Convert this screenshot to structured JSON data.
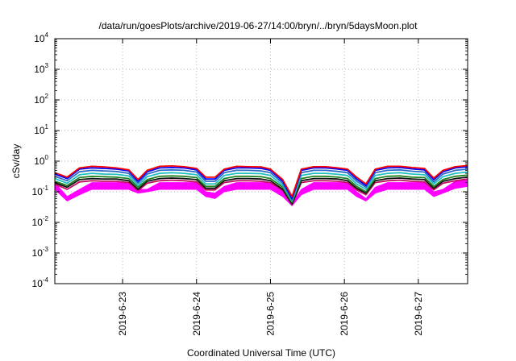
{
  "chart_data": {
    "type": "line",
    "title": "/data/run/goesPlots/archive/2019-06-27/14:00/bryn/../bryn/5daysMoon.plot",
    "xlabel": "Coordinated Universal Time (UTC)",
    "ylabel": "cSv/day",
    "yscale": "log",
    "ylim": [
      0.0001,
      10000
    ],
    "xlim": [
      "2019-06-22 02:00",
      "2019-06-27 16:00"
    ],
    "grid": true,
    "y_ticks": [
      {
        "base": "10",
        "exp": "4"
      },
      {
        "base": "10",
        "exp": "3"
      },
      {
        "base": "10",
        "exp": "2"
      },
      {
        "base": "10",
        "exp": "1"
      },
      {
        "base": "10",
        "exp": "0"
      },
      {
        "base": "10",
        "exp": "-1"
      },
      {
        "base": "10",
        "exp": "-2"
      },
      {
        "base": "10",
        "exp": "-3"
      },
      {
        "base": "10",
        "exp": "-4"
      }
    ],
    "x_ticks": [
      "2019-6-23",
      "2019-6-24",
      "2019-6-25",
      "2019-6-26",
      "2019-6-27"
    ],
    "envelope": {
      "color": "#ff00ff",
      "x": [
        "2019-06-22 02:00",
        "2019-06-22 06:00",
        "2019-06-22 10:00",
        "2019-06-22 14:00",
        "2019-06-22 18:00",
        "2019-06-22 22:00",
        "2019-06-23 02:00",
        "2019-06-23 05:00",
        "2019-06-23 08:00",
        "2019-06-23 12:00",
        "2019-06-23 16:00",
        "2019-06-23 20:00",
        "2019-06-24 00:00",
        "2019-06-24 03:00",
        "2019-06-24 06:00",
        "2019-06-24 09:00",
        "2019-06-24 13:00",
        "2019-06-24 17:00",
        "2019-06-24 21:00",
        "2019-06-25 00:00",
        "2019-06-25 04:00",
        "2019-06-25 07:00",
        "2019-06-25 10:00",
        "2019-06-25 14:00",
        "2019-06-25 18:00",
        "2019-06-25 22:00",
        "2019-06-26 01:00",
        "2019-06-26 04:00",
        "2019-06-26 07:00",
        "2019-06-26 10:00",
        "2019-06-26 14:00",
        "2019-06-26 18:00",
        "2019-06-26 22:00",
        "2019-06-27 02:00",
        "2019-06-27 05:00",
        "2019-06-27 08:00",
        "2019-06-27 12:00",
        "2019-06-27 16:00"
      ],
      "upper": [
        0.2,
        0.07,
        0.12,
        0.2,
        0.2,
        0.2,
        0.2,
        0.12,
        0.12,
        0.2,
        0.2,
        0.2,
        0.2,
        0.1,
        0.09,
        0.15,
        0.2,
        0.2,
        0.2,
        0.2,
        0.1,
        0.04,
        0.12,
        0.2,
        0.2,
        0.2,
        0.2,
        0.1,
        0.06,
        0.14,
        0.2,
        0.2,
        0.2,
        0.2,
        0.1,
        0.12,
        0.22,
        0.25
      ],
      "lower": [
        0.12,
        0.05,
        0.08,
        0.12,
        0.12,
        0.12,
        0.12,
        0.09,
        0.1,
        0.12,
        0.12,
        0.12,
        0.12,
        0.07,
        0.06,
        0.1,
        0.12,
        0.12,
        0.12,
        0.12,
        0.07,
        0.035,
        0.08,
        0.12,
        0.12,
        0.12,
        0.12,
        0.07,
        0.05,
        0.09,
        0.12,
        0.12,
        0.12,
        0.12,
        0.07,
        0.09,
        0.13,
        0.15
      ]
    },
    "series": [
      {
        "color": "#ff0000",
        "values": [
          0.42,
          0.3,
          0.6,
          0.68,
          0.65,
          0.6,
          0.52,
          0.25,
          0.5,
          0.68,
          0.7,
          0.66,
          0.58,
          0.3,
          0.3,
          0.55,
          0.68,
          0.66,
          0.65,
          0.55,
          0.25,
          0.07,
          0.55,
          0.66,
          0.66,
          0.6,
          0.55,
          0.3,
          0.18,
          0.55,
          0.68,
          0.68,
          0.62,
          0.58,
          0.28,
          0.5,
          0.66,
          0.72
        ]
      },
      {
        "color": "#0000ff",
        "values": [
          0.38,
          0.27,
          0.55,
          0.6,
          0.58,
          0.55,
          0.48,
          0.22,
          0.45,
          0.6,
          0.62,
          0.6,
          0.52,
          0.26,
          0.26,
          0.5,
          0.6,
          0.6,
          0.58,
          0.5,
          0.22,
          0.06,
          0.5,
          0.6,
          0.6,
          0.55,
          0.5,
          0.26,
          0.16,
          0.5,
          0.6,
          0.62,
          0.56,
          0.52,
          0.25,
          0.45,
          0.6,
          0.66
        ]
      },
      {
        "color": "#2d6cc4",
        "values": [
          0.32,
          0.23,
          0.45,
          0.5,
          0.48,
          0.46,
          0.4,
          0.19,
          0.38,
          0.5,
          0.52,
          0.5,
          0.44,
          0.22,
          0.22,
          0.42,
          0.5,
          0.5,
          0.48,
          0.42,
          0.19,
          0.055,
          0.42,
          0.5,
          0.5,
          0.46,
          0.42,
          0.22,
          0.14,
          0.42,
          0.5,
          0.52,
          0.47,
          0.44,
          0.21,
          0.38,
          0.5,
          0.55
        ]
      },
      {
        "color": "#20c0c0",
        "values": [
          0.27,
          0.19,
          0.36,
          0.4,
          0.38,
          0.37,
          0.33,
          0.16,
          0.31,
          0.4,
          0.42,
          0.4,
          0.36,
          0.18,
          0.18,
          0.34,
          0.4,
          0.4,
          0.39,
          0.34,
          0.16,
          0.05,
          0.34,
          0.4,
          0.4,
          0.37,
          0.34,
          0.18,
          0.12,
          0.34,
          0.4,
          0.42,
          0.38,
          0.36,
          0.18,
          0.31,
          0.4,
          0.44
        ]
      },
      {
        "color": "#208020",
        "values": [
          0.22,
          0.16,
          0.29,
          0.32,
          0.31,
          0.3,
          0.27,
          0.14,
          0.25,
          0.32,
          0.33,
          0.32,
          0.29,
          0.15,
          0.15,
          0.27,
          0.32,
          0.32,
          0.31,
          0.27,
          0.14,
          0.045,
          0.27,
          0.32,
          0.32,
          0.3,
          0.27,
          0.15,
          0.1,
          0.27,
          0.32,
          0.33,
          0.3,
          0.29,
          0.15,
          0.25,
          0.32,
          0.35
        ]
      },
      {
        "color": "#111111",
        "values": [
          0.2,
          0.14,
          0.25,
          0.27,
          0.26,
          0.26,
          0.23,
          0.12,
          0.22,
          0.27,
          0.28,
          0.27,
          0.25,
          0.13,
          0.13,
          0.23,
          0.27,
          0.27,
          0.26,
          0.23,
          0.12,
          0.04,
          0.23,
          0.27,
          0.27,
          0.26,
          0.23,
          0.13,
          0.09,
          0.23,
          0.27,
          0.28,
          0.26,
          0.25,
          0.13,
          0.22,
          0.27,
          0.3
        ]
      },
      {
        "color": "#c01060",
        "values": [
          0.18,
          0.12,
          0.21,
          0.23,
          0.22,
          0.22,
          0.2,
          0.11,
          0.19,
          0.23,
          0.24,
          0.23,
          0.21,
          0.115,
          0.115,
          0.2,
          0.23,
          0.23,
          0.22,
          0.2,
          0.11,
          0.038,
          0.2,
          0.23,
          0.23,
          0.22,
          0.2,
          0.115,
          0.08,
          0.2,
          0.23,
          0.24,
          0.22,
          0.21,
          0.115,
          0.19,
          0.23,
          0.26
        ]
      }
    ]
  }
}
